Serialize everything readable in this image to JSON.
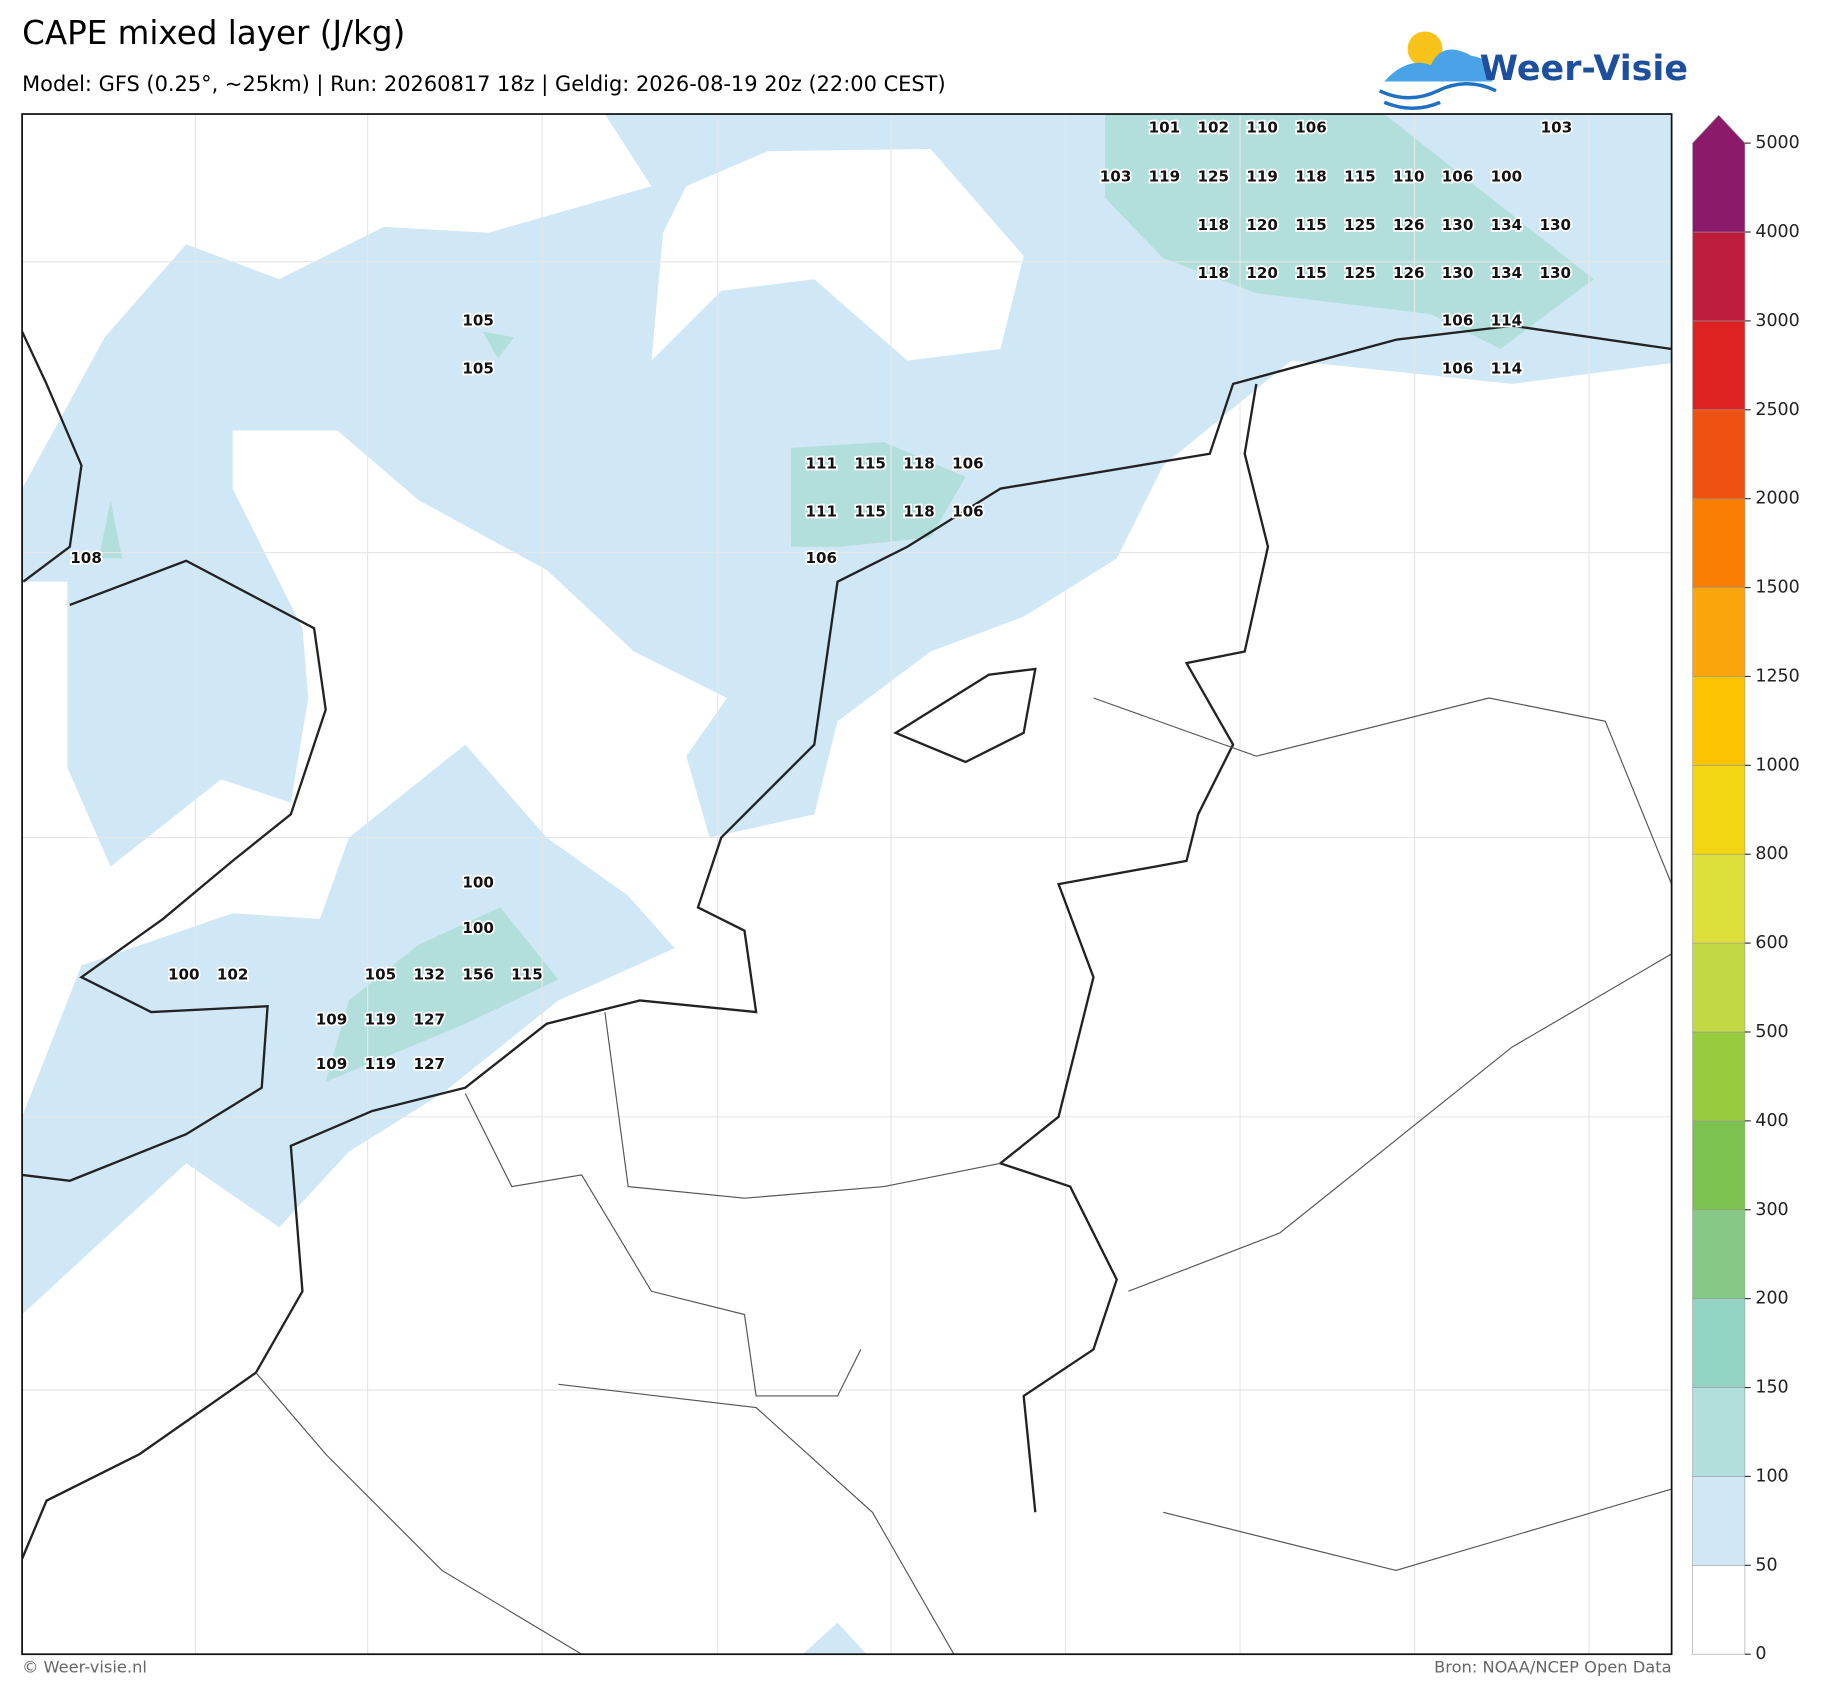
{
  "header": {
    "title": "CAPE mixed layer (J/kg)",
    "subtitle": "Model: GFS (0.25°, ~25km)  |  Run: 20260817 18z  |  Geldig: 2026-08-19 20z (22:00 CEST)",
    "logo": "Weer-Visie"
  },
  "map": {
    "labels": [
      101,
      102,
      110,
      106,
      103,
      103,
      119,
      125,
      119,
      118,
      115,
      110,
      106,
      100,
      118,
      120,
      115,
      125,
      126,
      130,
      134,
      130,
      118,
      120,
      115,
      125,
      126,
      130,
      134,
      130,
      105,
      106,
      114,
      105,
      106,
      114,
      111,
      115,
      118,
      106,
      111,
      115,
      118,
      106,
      108,
      106,
      100,
      100,
      100,
      102,
      105,
      132,
      156,
      115,
      109,
      119,
      127,
      109,
      119,
      127
    ]
  },
  "colorbar": {
    "levels": [
      0,
      50,
      100,
      150,
      200,
      300,
      400,
      500,
      600,
      800,
      1000,
      1250,
      1500,
      2000,
      2500,
      3000,
      4000,
      5000
    ],
    "colors": [
      "#ffffff",
      "#d0e7f5",
      "#b2dfdb",
      "#93d3c4",
      "#86c987",
      "#7bc24f",
      "#99cb3e",
      "#c2d844",
      "#dde03a",
      "#f2d513",
      "#fbc302",
      "#fba50c",
      "#f97e01",
      "#ee5012",
      "#de2121",
      "#be1c3c",
      "#8b1a6a"
    ]
  },
  "footer": {
    "left": "© Weer-visie.nl",
    "right": "Bron: NOAA/NCEP Open Data"
  }
}
